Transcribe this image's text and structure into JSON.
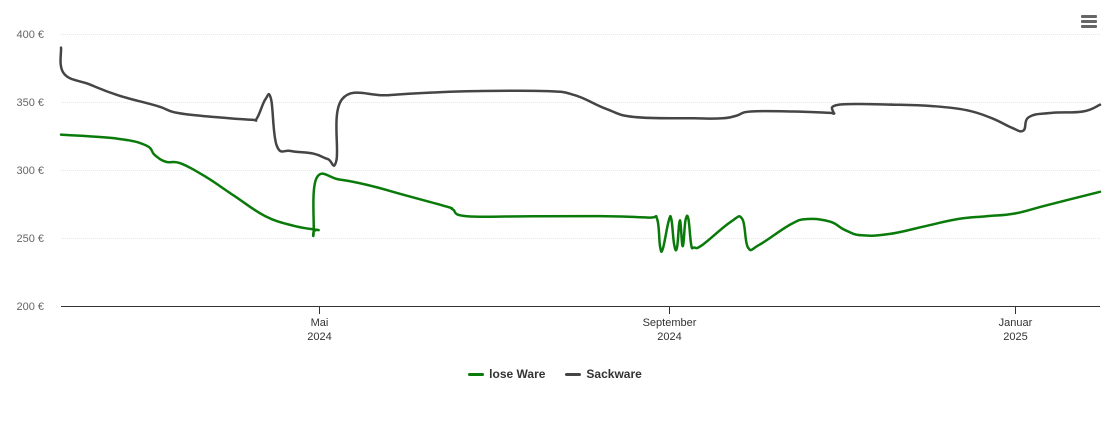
{
  "colors": {
    "lose_ware": "#0a7a0a",
    "sackware": "#454545",
    "grid": "#e8e8e8",
    "axis": "#333333",
    "label": "#666666"
  },
  "menu": {
    "icon": "hamburger-menu-icon"
  },
  "chart_data": {
    "type": "line",
    "title": "",
    "xlabel": "",
    "ylabel": "",
    "ylim": [
      200,
      400
    ],
    "yticks": [
      200,
      250,
      300,
      350,
      400
    ],
    "ytick_labels": [
      "200 €",
      "250 €",
      "300 €",
      "350 €",
      "400 €"
    ],
    "xlim": [
      "2024-01-31",
      "2025-01-31"
    ],
    "xticks": [
      {
        "date": "2024-05-01",
        "label": "Mai",
        "year": "2024"
      },
      {
        "date": "2024-09-01",
        "label": "September",
        "year": "2024"
      },
      {
        "date": "2025-01-01",
        "label": "Januar",
        "year": "2025"
      }
    ],
    "grid": true,
    "legend_position": "bottom",
    "series": [
      {
        "name": "lose Ware",
        "color": "#0a7a0a",
        "points": [
          [
            "2024-01-31",
            326
          ],
          [
            "2024-02-20",
            323
          ],
          [
            "2024-03-01",
            318
          ],
          [
            "2024-03-04",
            311
          ],
          [
            "2024-03-08",
            306
          ],
          [
            "2024-03-13",
            305
          ],
          [
            "2024-03-22",
            295
          ],
          [
            "2024-04-01",
            281
          ],
          [
            "2024-04-12",
            266
          ],
          [
            "2024-04-22",
            259
          ],
          [
            "2024-04-30",
            256
          ],
          [
            "2024-04-30",
            256
          ],
          [
            "2024-04-29",
            255
          ],
          [
            "2024-04-29",
            255
          ],
          [
            "2024-04-30",
            294
          ],
          [
            "2024-05-08",
            293
          ],
          [
            "2024-05-18",
            289
          ],
          [
            "2024-06-01",
            281
          ],
          [
            "2024-06-15",
            273
          ],
          [
            "2024-06-17",
            271
          ],
          [
            "2024-06-22",
            266
          ],
          [
            "2024-07-15",
            266
          ],
          [
            "2024-08-10",
            266
          ],
          [
            "2024-08-25",
            265
          ],
          [
            "2024-08-28",
            264
          ],
          [
            "2024-08-29",
            244
          ],
          [
            "2024-08-30",
            242
          ],
          [
            "2024-09-01",
            262
          ],
          [
            "2024-09-02",
            264
          ],
          [
            "2024-09-03",
            245
          ],
          [
            "2024-09-04",
            243
          ],
          [
            "2024-09-05",
            263
          ],
          [
            "2024-09-06",
            244
          ],
          [
            "2024-09-07",
            263
          ],
          [
            "2024-09-08",
            264
          ],
          [
            "2024-09-09",
            245
          ],
          [
            "2024-09-10",
            243
          ],
          [
            "2024-09-13",
            245
          ],
          [
            "2024-09-23",
            262
          ],
          [
            "2024-09-27",
            264
          ],
          [
            "2024-09-29",
            243
          ],
          [
            "2024-10-03",
            245
          ],
          [
            "2024-10-14",
            260
          ],
          [
            "2024-10-20",
            264
          ],
          [
            "2024-10-28",
            262
          ],
          [
            "2024-11-02",
            256
          ],
          [
            "2024-11-08",
            252
          ],
          [
            "2024-11-18",
            253
          ],
          [
            "2024-12-01",
            259
          ],
          [
            "2024-12-12",
            264
          ],
          [
            "2024-12-22",
            266
          ],
          [
            "2025-01-01",
            268
          ],
          [
            "2025-01-12",
            274
          ],
          [
            "2025-01-31",
            284
          ]
        ]
      },
      {
        "name": "Sackware",
        "color": "#454545",
        "points": [
          [
            "2024-01-31",
            390
          ],
          [
            "2024-02-01",
            371
          ],
          [
            "2024-02-10",
            363
          ],
          [
            "2024-02-20",
            355
          ],
          [
            "2024-03-05",
            347
          ],
          [
            "2024-03-12",
            342
          ],
          [
            "2024-03-25",
            339
          ],
          [
            "2024-04-07",
            337
          ],
          [
            "2024-04-09",
            338
          ],
          [
            "2024-04-12",
            352
          ],
          [
            "2024-04-14",
            352
          ],
          [
            "2024-04-16",
            318
          ],
          [
            "2024-04-21",
            314
          ],
          [
            "2024-04-29",
            312
          ],
          [
            "2024-05-04",
            308
          ],
          [
            "2024-05-07",
            307
          ],
          [
            "2024-05-09",
            352
          ],
          [
            "2024-05-25",
            355
          ],
          [
            "2024-06-10",
            357
          ],
          [
            "2024-06-25",
            358
          ],
          [
            "2024-07-20",
            358
          ],
          [
            "2024-07-30",
            355
          ],
          [
            "2024-08-10",
            345
          ],
          [
            "2024-08-20",
            339
          ],
          [
            "2024-09-10",
            338
          ],
          [
            "2024-09-20",
            338
          ],
          [
            "2024-09-25",
            340
          ],
          [
            "2024-09-30",
            343
          ],
          [
            "2024-10-15",
            343
          ],
          [
            "2024-10-28",
            342
          ],
          [
            "2024-10-29",
            342
          ],
          [
            "2024-10-31",
            348
          ],
          [
            "2024-11-20",
            348
          ],
          [
            "2024-12-03",
            347
          ],
          [
            "2024-12-15",
            344
          ],
          [
            "2024-12-24",
            338
          ],
          [
            "2024-12-31",
            331
          ],
          [
            "2025-01-04",
            329
          ],
          [
            "2025-01-06",
            339
          ],
          [
            "2025-01-14",
            342
          ],
          [
            "2025-01-25",
            343
          ],
          [
            "2025-01-31",
            348
          ]
        ]
      }
    ]
  }
}
